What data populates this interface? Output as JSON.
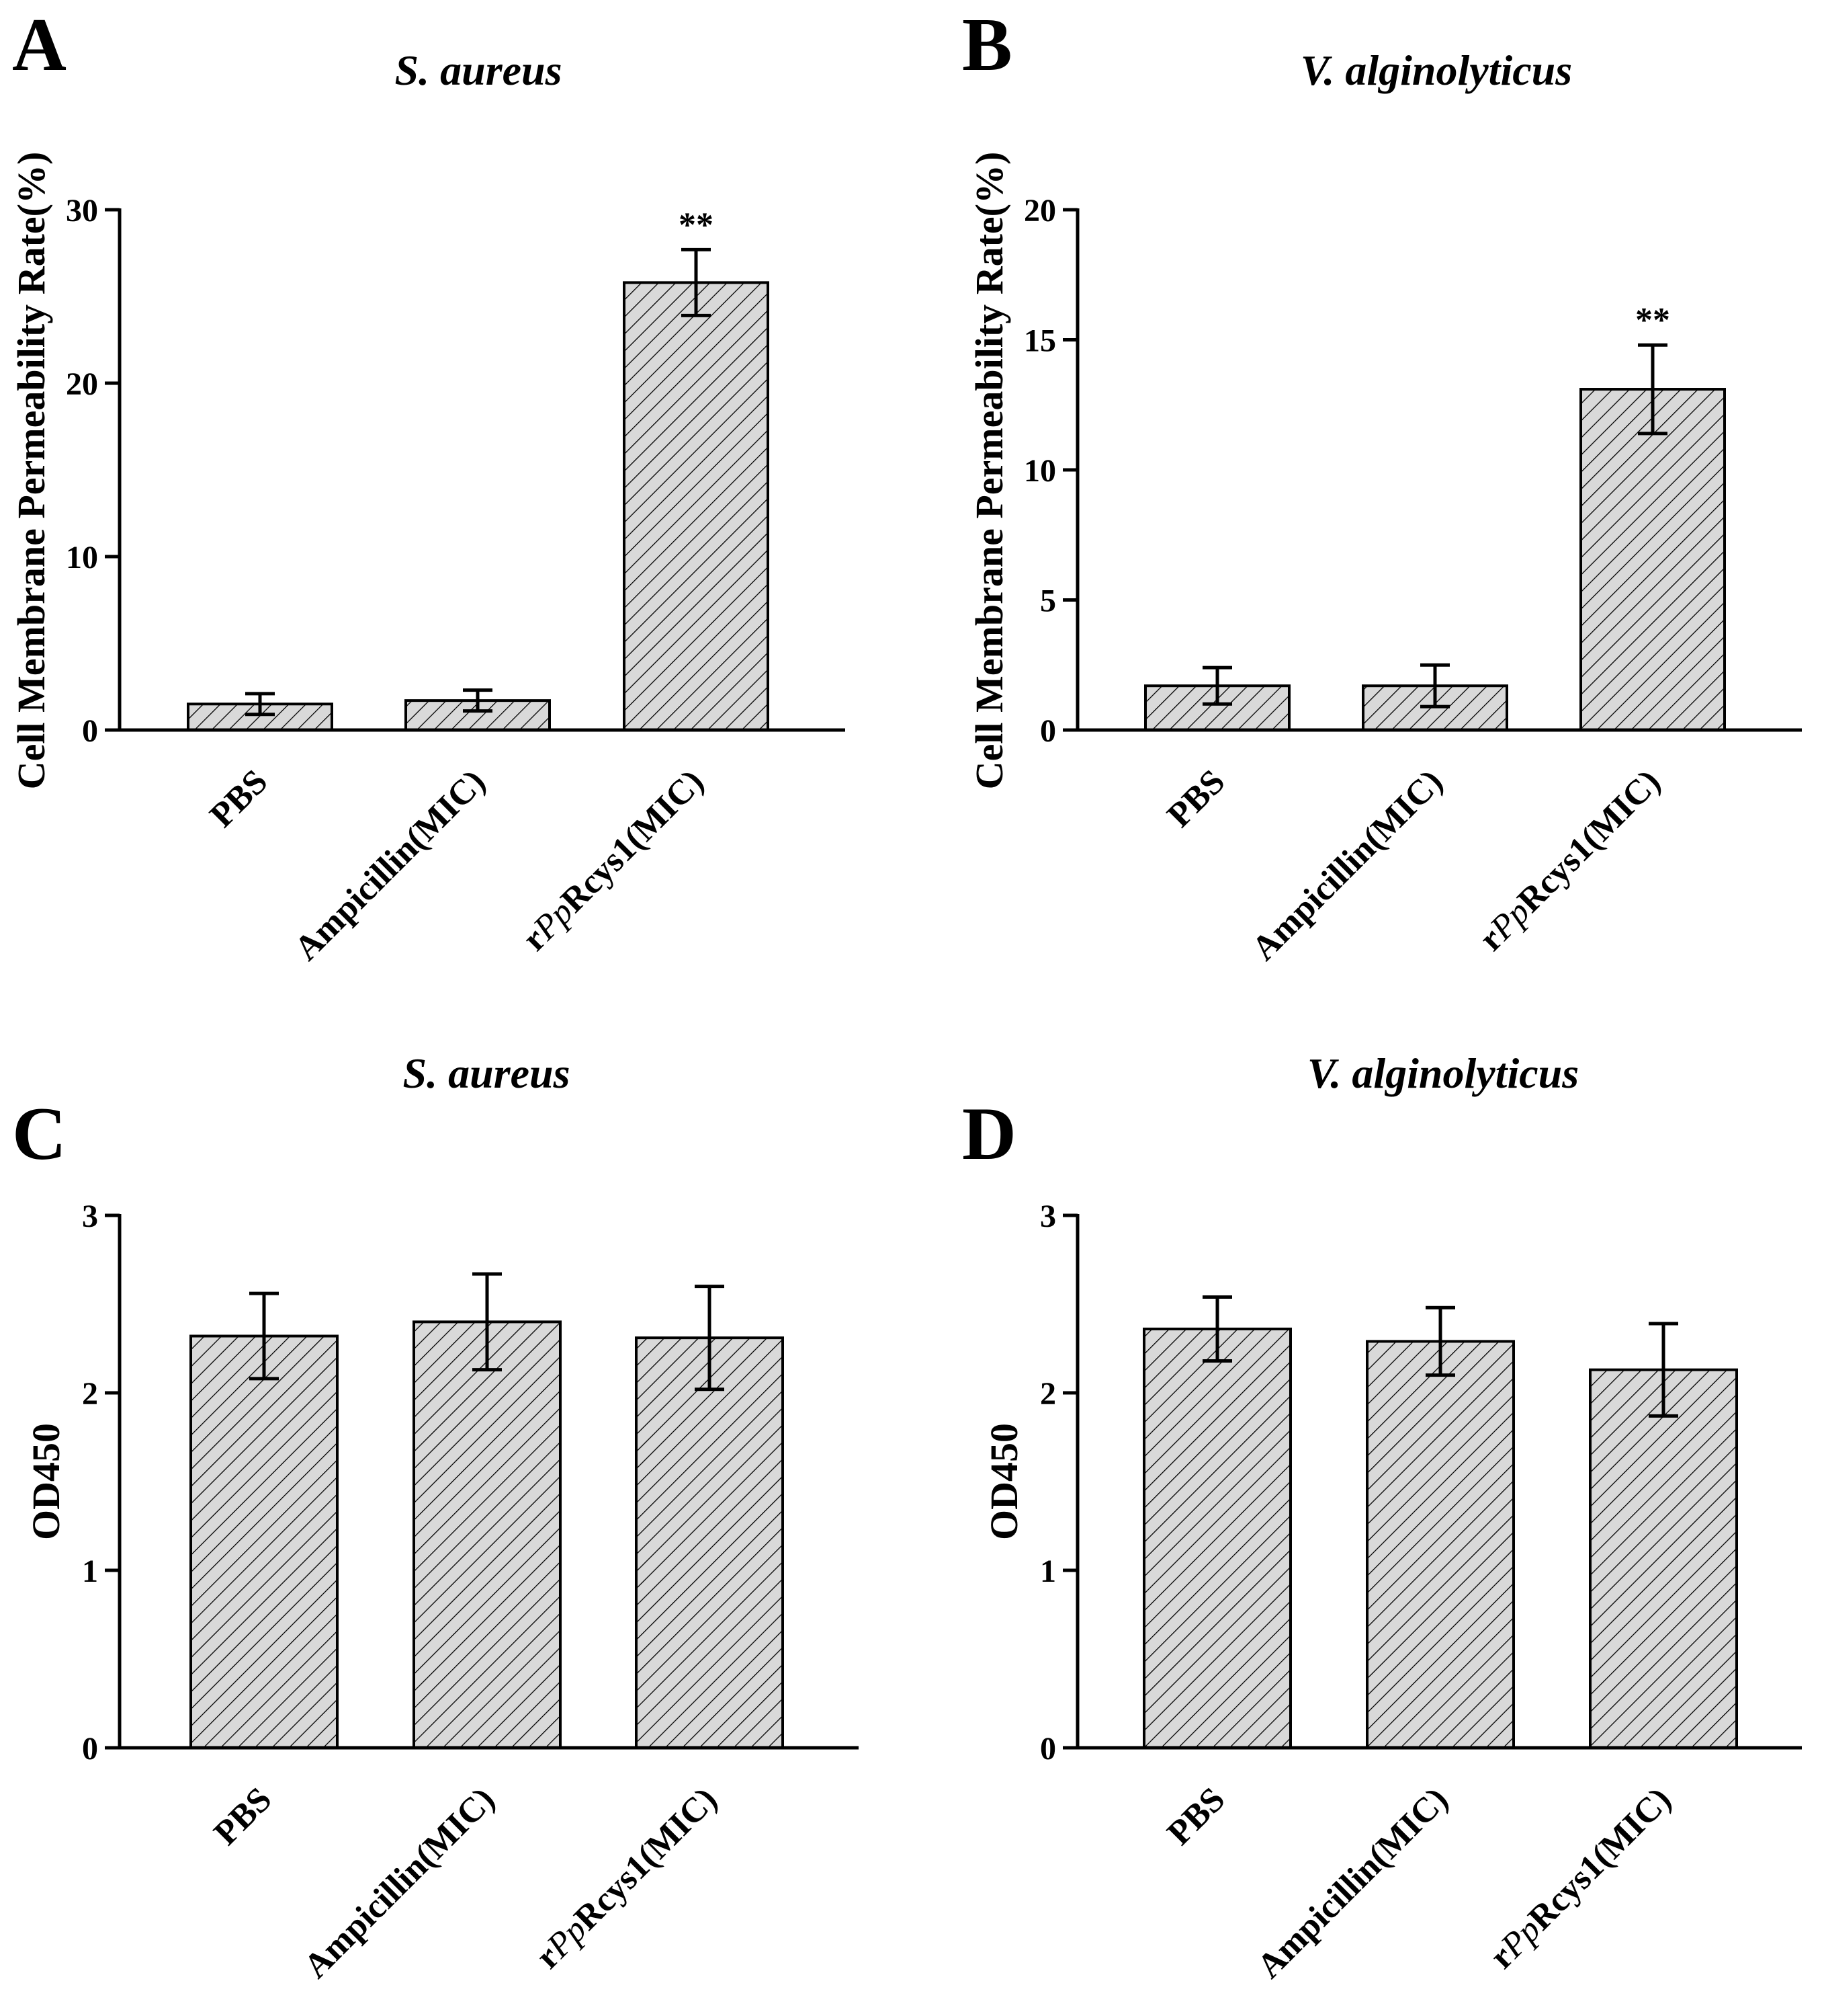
{
  "chart_data": [
    {
      "panel": "A",
      "type": "bar",
      "title": "S. aureus",
      "ylabel": "Cell Membrane Permeability Rate(%)",
      "xlabel": "",
      "ylim": [
        0,
        30
      ],
      "yticks": [
        0,
        10,
        20,
        30
      ],
      "categories": [
        "PBS",
        "Ampicillin(MIC)",
        "rPpRcys1(MIC)"
      ],
      "values": [
        1.5,
        1.7,
        25.8
      ],
      "errors": [
        0.6,
        0.6,
        1.9
      ],
      "significance": [
        "",
        "",
        "**"
      ],
      "grid": false
    },
    {
      "panel": "B",
      "type": "bar",
      "title": "V. alginolyticus",
      "ylabel": "Cell Membrane Permeability Rate(%)",
      "xlabel": "",
      "ylim": [
        0,
        20
      ],
      "yticks": [
        0,
        5,
        10,
        15,
        20
      ],
      "categories": [
        "PBS",
        "Ampicillin(MIC)",
        "rPpRcys1(MIC)"
      ],
      "values": [
        1.7,
        1.7,
        13.1
      ],
      "errors": [
        0.7,
        0.8,
        1.7
      ],
      "significance": [
        "",
        "",
        "**"
      ],
      "grid": false
    },
    {
      "panel": "C",
      "type": "bar",
      "title": "S. aureus",
      "ylabel": "OD450",
      "xlabel": "",
      "ylim": [
        0,
        3
      ],
      "yticks": [
        0,
        1,
        2,
        3
      ],
      "categories": [
        "PBS",
        "Ampicillin(MIC)",
        "rPpRcys1(MIC)"
      ],
      "values": [
        2.32,
        2.4,
        2.31
      ],
      "errors": [
        0.24,
        0.27,
        0.29
      ],
      "significance": [
        "",
        "",
        ""
      ],
      "grid": false
    },
    {
      "panel": "D",
      "type": "bar",
      "title": "V. alginolyticus",
      "ylabel": "OD450",
      "xlabel": "",
      "ylim": [
        0,
        3
      ],
      "yticks": [
        0,
        1,
        2,
        3
      ],
      "categories": [
        "PBS",
        "Ampicillin(MIC)",
        "rPpRcys1(MIC)"
      ],
      "values": [
        2.36,
        2.29,
        2.13
      ],
      "errors": [
        0.18,
        0.19,
        0.26
      ],
      "significance": [
        "",
        "",
        ""
      ],
      "grid": false
    }
  ],
  "colors": {
    "bar_fill": "#d9d9d9",
    "hatch": "#000000",
    "axis": "#000000"
  }
}
